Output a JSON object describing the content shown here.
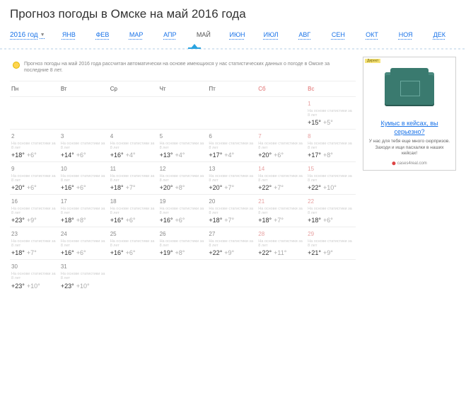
{
  "title": "Прогноз погоды в Омске на май 2016 года",
  "year": {
    "label": "2016 год"
  },
  "months": [
    {
      "label": "ЯНВ",
      "active": false
    },
    {
      "label": "ФЕВ",
      "active": false
    },
    {
      "label": "МАР",
      "active": false
    },
    {
      "label": "АПР",
      "active": false
    },
    {
      "label": "МАЙ",
      "active": true
    },
    {
      "label": "ИЮН",
      "active": false
    },
    {
      "label": "ИЮЛ",
      "active": false
    },
    {
      "label": "АВГ",
      "active": false
    },
    {
      "label": "СЕН",
      "active": false
    },
    {
      "label": "ОКТ",
      "active": false
    },
    {
      "label": "НОЯ",
      "active": false
    },
    {
      "label": "ДЕК",
      "active": false
    }
  ],
  "info": "Прогноз погоды на май 2016 года рассчитан автоматически на основе имеющихся у нас статистических данных о погоде в Омске за последние 8 лет.",
  "weekdays": [
    {
      "label": "Пн",
      "weekend": false
    },
    {
      "label": "Вт",
      "weekend": false
    },
    {
      "label": "Ср",
      "weekend": false
    },
    {
      "label": "Чт",
      "weekend": false
    },
    {
      "label": "Пт",
      "weekend": false
    },
    {
      "label": "Сб",
      "weekend": true
    },
    {
      "label": "Вс",
      "weekend": true
    }
  ],
  "stat_note": "На основе статистики за 8 лет",
  "leading_empty": 6,
  "days": [
    {
      "n": "1",
      "hi": "+15°",
      "lo": "+5°",
      "weekend": true
    },
    {
      "n": "2",
      "hi": "+18°",
      "lo": "+6°"
    },
    {
      "n": "3",
      "hi": "+14°",
      "lo": "+6°"
    },
    {
      "n": "4",
      "hi": "+16°",
      "lo": "+4°"
    },
    {
      "n": "5",
      "hi": "+13°",
      "lo": "+4°"
    },
    {
      "n": "6",
      "hi": "+17°",
      "lo": "+4°"
    },
    {
      "n": "7",
      "hi": "+20°",
      "lo": "+6°",
      "weekend": true
    },
    {
      "n": "8",
      "hi": "+17°",
      "lo": "+8°",
      "weekend": true
    },
    {
      "n": "9",
      "hi": "+20°",
      "lo": "+6°"
    },
    {
      "n": "10",
      "hi": "+16°",
      "lo": "+6°"
    },
    {
      "n": "11",
      "hi": "+18°",
      "lo": "+7°"
    },
    {
      "n": "12",
      "hi": "+20°",
      "lo": "+8°"
    },
    {
      "n": "13",
      "hi": "+20°",
      "lo": "+7°"
    },
    {
      "n": "14",
      "hi": "+22°",
      "lo": "+7°",
      "weekend": true
    },
    {
      "n": "15",
      "hi": "+22°",
      "lo": "+10°",
      "weekend": true
    },
    {
      "n": "16",
      "hi": "+23°",
      "lo": "+9°"
    },
    {
      "n": "17",
      "hi": "+18°",
      "lo": "+8°"
    },
    {
      "n": "18",
      "hi": "+16°",
      "lo": "+6°"
    },
    {
      "n": "19",
      "hi": "+16°",
      "lo": "+6°"
    },
    {
      "n": "20",
      "hi": "+18°",
      "lo": "+7°"
    },
    {
      "n": "21",
      "hi": "+18°",
      "lo": "+7°",
      "weekend": true
    },
    {
      "n": "22",
      "hi": "+18°",
      "lo": "+6°",
      "weekend": true
    },
    {
      "n": "23",
      "hi": "+18°",
      "lo": "+7°"
    },
    {
      "n": "24",
      "hi": "+16°",
      "lo": "+6°"
    },
    {
      "n": "25",
      "hi": "+16°",
      "lo": "+6°"
    },
    {
      "n": "26",
      "hi": "+19°",
      "lo": "+8°"
    },
    {
      "n": "27",
      "hi": "+22°",
      "lo": "+9°"
    },
    {
      "n": "28",
      "hi": "+22°",
      "lo": "+11°",
      "weekend": true
    },
    {
      "n": "29",
      "hi": "+21°",
      "lo": "+9°",
      "weekend": true
    },
    {
      "n": "30",
      "hi": "+23°",
      "lo": "+10°"
    },
    {
      "n": "31",
      "hi": "+23°",
      "lo": "+10°"
    }
  ],
  "ad": {
    "tag": "Директ",
    "title": "Кумыс в кейсах, вы серьезно?",
    "desc": "У нас для тебя еще много сюрпризов. Заходи и ищи пасхалки в наших кейсах!",
    "source": "cases4real.com"
  }
}
